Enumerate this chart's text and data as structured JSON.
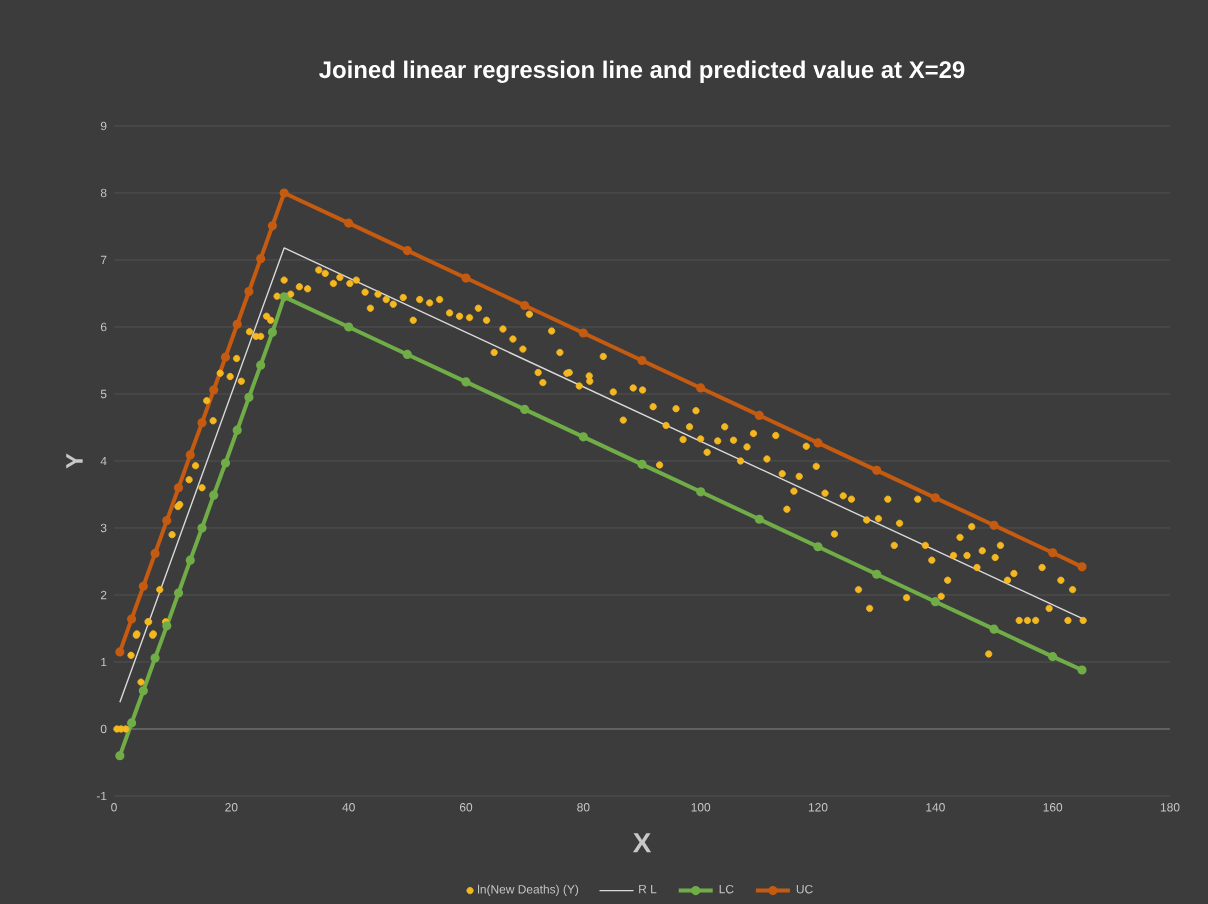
{
  "chart_data": {
    "type": "scatter",
    "title": "Joined linear regression line and predicted value at X=29",
    "xlabel": "X",
    "ylabel": "Y",
    "xlim": [
      0,
      180
    ],
    "xticks": [
      0,
      20,
      40,
      60,
      80,
      100,
      120,
      140,
      160,
      180
    ],
    "ylim": [
      -1,
      9
    ],
    "yticks": [
      -1,
      0,
      1,
      2,
      3,
      4,
      5,
      6,
      7,
      8,
      9
    ],
    "grid": "y",
    "legend": "bottom",
    "series": [
      {
        "name": "ln(New Deaths) (Y)",
        "marker": "circle",
        "color": "#f5b820",
        "x": [
          0.5,
          1.2,
          2,
          2.9,
          3.8,
          4.6,
          5.9,
          6.6,
          8.8,
          3.9,
          6.7,
          5.8,
          7.8,
          9.9,
          10.9,
          11.2,
          12.8,
          13.9,
          15,
          16.9,
          15.8,
          18.1,
          19.8,
          21.7,
          20.9,
          23.1,
          24.2,
          25,
          26,
          26.7,
          27.8,
          29,
          30.1,
          31.6,
          33,
          34.9,
          36,
          37.4,
          38.5,
          40.2,
          41.3,
          42.8,
          43.7,
          45,
          46.4,
          47.6,
          49.3,
          51,
          52.1,
          53.8,
          55.5,
          57.2,
          58.9,
          60.6,
          62.1,
          63.5,
          64.8,
          66.3,
          68,
          69.7,
          70.8,
          72.3,
          73.1,
          74.6,
          76,
          77.6,
          79.3,
          81,
          83.4,
          77.2,
          81.1,
          85.1,
          86.8,
          88.5,
          90.1,
          91.9,
          93,
          94.1,
          95.8,
          97,
          98.1,
          99.2,
          100,
          101.1,
          102.9,
          104.1,
          105.6,
          106.8,
          107.9,
          109,
          111.3,
          112.8,
          113.9,
          114.7,
          115.9,
          116.8,
          118,
          119.7,
          121.2,
          122.8,
          124.3,
          125.7,
          126.9,
          128.8,
          128.3,
          130.3,
          131.9,
          133,
          133.9,
          135.1,
          137,
          138.3,
          139.4,
          141,
          142.1,
          143.1,
          144.2,
          145.4,
          146.2,
          147.1,
          148,
          149.1,
          150.2,
          151.1,
          152.3,
          153.4,
          154.3,
          155.7,
          157.1,
          158.2,
          159.4,
          161.4,
          162.6,
          163.4,
          165.2
        ],
        "values": [
          0,
          0,
          0,
          1.1,
          1.4,
          0.7,
          1.6,
          1.4,
          1.6,
          1.42,
          1.42,
          1.6,
          2.08,
          2.9,
          3.32,
          3.35,
          3.72,
          3.93,
          3.6,
          4.6,
          4.9,
          5.31,
          5.26,
          5.19,
          5.53,
          5.93,
          5.86,
          5.86,
          6.16,
          6.1,
          6.46,
          6.7,
          6.49,
          6.6,
          6.57,
          6.85,
          6.8,
          6.65,
          6.74,
          6.65,
          6.7,
          6.52,
          6.28,
          6.49,
          6.41,
          6.34,
          6.44,
          6.1,
          6.41,
          6.36,
          6.41,
          6.21,
          6.16,
          6.14,
          6.28,
          6.1,
          5.62,
          5.97,
          5.82,
          5.67,
          6.19,
          5.32,
          5.17,
          5.94,
          5.62,
          5.32,
          5.12,
          5.27,
          5.56,
          5.31,
          5.19,
          5.03,
          4.61,
          5.09,
          5.06,
          4.81,
          3.94,
          4.53,
          4.78,
          4.32,
          4.51,
          4.75,
          4.33,
          4.13,
          4.3,
          4.51,
          4.31,
          4,
          4.21,
          4.41,
          4.03,
          4.38,
          3.81,
          3.28,
          3.55,
          3.77,
          4.22,
          3.92,
          3.52,
          2.91,
          3.48,
          3.43,
          2.08,
          1.8,
          3.12,
          3.14,
          3.43,
          2.74,
          3.07,
          1.96,
          3.43,
          2.74,
          2.52,
          1.98,
          2.22,
          2.59,
          2.86,
          2.59,
          3.02,
          2.41,
          2.66,
          1.12,
          2.56,
          2.74,
          2.22,
          2.32,
          1.62,
          1.62,
          1.62,
          2.41,
          1.8,
          2.22,
          1.62,
          2.08,
          1.62
        ]
      },
      {
        "name": "R L",
        "type": "line",
        "marker": "none",
        "color": "#d9d9d9",
        "x": [
          1,
          29,
          165
        ],
        "values": [
          0.4,
          7.18,
          1.65
        ]
      },
      {
        "name": "LC",
        "type": "line",
        "marker": "circle",
        "color": "#70ad47",
        "x": [
          1,
          3,
          5,
          7,
          9,
          11,
          13,
          15,
          17,
          19,
          21,
          23,
          25,
          27,
          29,
          40,
          50,
          60,
          70,
          80,
          90,
          100,
          110,
          120,
          130,
          140,
          150,
          160,
          165
        ],
        "values": [
          -0.4,
          0.09,
          0.57,
          1.06,
          1.54,
          2.03,
          2.52,
          3.0,
          3.49,
          3.97,
          4.46,
          4.95,
          5.43,
          5.92,
          6.45,
          6.0,
          5.59,
          5.18,
          4.77,
          4.36,
          3.95,
          3.54,
          3.13,
          2.72,
          2.31,
          1.9,
          1.49,
          1.08,
          0.88
        ]
      },
      {
        "name": "UC",
        "type": "line",
        "marker": "circle",
        "color": "#c55a11",
        "x": [
          1,
          3,
          5,
          7,
          9,
          11,
          13,
          15,
          17,
          19,
          21,
          23,
          25,
          27,
          29,
          40,
          50,
          60,
          70,
          80,
          90,
          100,
          110,
          120,
          130,
          140,
          150,
          160,
          165
        ],
        "values": [
          1.15,
          1.64,
          2.13,
          2.62,
          3.11,
          3.6,
          4.09,
          4.57,
          5.06,
          5.55,
          6.04,
          6.53,
          7.02,
          7.51,
          8.0,
          7.55,
          7.14,
          6.73,
          6.32,
          5.91,
          5.5,
          5.09,
          4.68,
          4.27,
          3.86,
          3.45,
          3.04,
          2.63,
          2.42
        ]
      }
    ]
  }
}
